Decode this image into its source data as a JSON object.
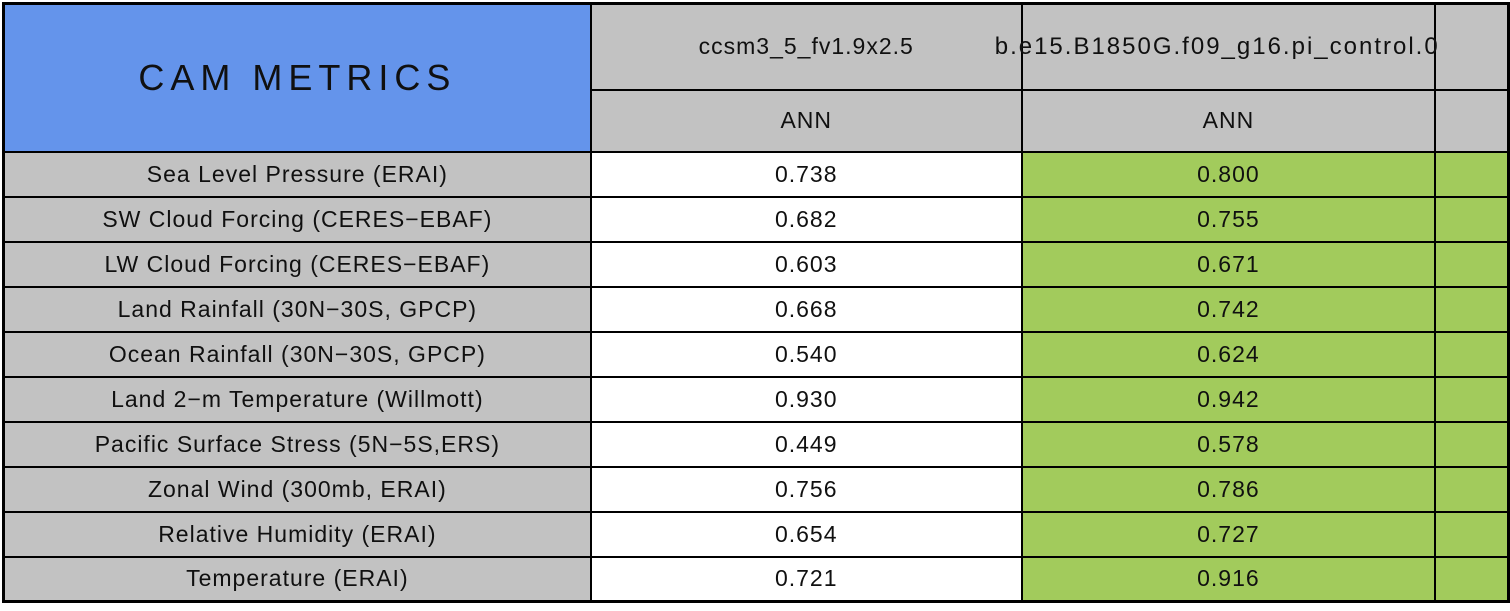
{
  "table": {
    "title": "CAM METRICS",
    "columns": [
      {
        "model": "ccsm3_5_fv1.9x2.5",
        "season": "ANN"
      },
      {
        "model": "b.e15.B1850G.f09_g16.pi_control.0",
        "season": "ANN"
      }
    ],
    "rows": [
      {
        "metric": "Sea Level Pressure (ERAI)",
        "values": [
          "0.738",
          "0.800"
        ]
      },
      {
        "metric": "SW Cloud Forcing (CERES−EBAF)",
        "values": [
          "0.682",
          "0.755"
        ]
      },
      {
        "metric": "LW Cloud Forcing (CERES−EBAF)",
        "values": [
          "0.603",
          "0.671"
        ]
      },
      {
        "metric": "Land Rainfall (30N−30S, GPCP)",
        "values": [
          "0.668",
          "0.742"
        ]
      },
      {
        "metric": "Ocean Rainfall (30N−30S, GPCP)",
        "values": [
          "0.540",
          "0.624"
        ]
      },
      {
        "metric": "Land 2−m Temperature (Willmott)",
        "values": [
          "0.930",
          "0.942"
        ]
      },
      {
        "metric": "Pacific Surface Stress (5N−5S,ERS)",
        "values": [
          "0.449",
          "0.578"
        ]
      },
      {
        "metric": "Zonal Wind (300mb, ERAI)",
        "values": [
          "0.756",
          "0.786"
        ]
      },
      {
        "metric": "Relative Humidity (ERAI)",
        "values": [
          "0.654",
          "0.727"
        ]
      },
      {
        "metric": "Temperature (ERAI)",
        "values": [
          "0.721",
          "0.916"
        ]
      }
    ],
    "colors": {
      "title_bg": "#6494EB",
      "header_bg": "#C2C2C2",
      "label_bg": "#C2C2C2",
      "value_col1_bg": "#FFFFFF",
      "value_col2_bg": "#A2CB5C",
      "border": "#000000"
    }
  },
  "chart_data": {
    "type": "table",
    "title": "CAM METRICS",
    "column_headers": [
      "ccsm3_5_fv1.9x2.5",
      "b.e15.B1850G.f09_g16.pi_control.0"
    ],
    "subheaders": [
      "ANN",
      "ANN"
    ],
    "row_labels": [
      "Sea Level Pressure (ERAI)",
      "SW Cloud Forcing (CERES−EBAF)",
      "LW Cloud Forcing (CERES−EBAF)",
      "Land Rainfall (30N−30S, GPCP)",
      "Ocean Rainfall (30N−30S, GPCP)",
      "Land 2−m Temperature (Willmott)",
      "Pacific Surface Stress (5N−5S,ERS)",
      "Zonal Wind (300mb, ERAI)",
      "Relative Humidity (ERAI)",
      "Temperature (ERAI)"
    ],
    "values": [
      [
        0.738,
        0.8
      ],
      [
        0.682,
        0.755
      ],
      [
        0.603,
        0.671
      ],
      [
        0.668,
        0.742
      ],
      [
        0.54,
        0.624
      ],
      [
        0.93,
        0.942
      ],
      [
        0.449,
        0.578
      ],
      [
        0.756,
        0.786
      ],
      [
        0.654,
        0.727
      ],
      [
        0.721,
        0.916
      ]
    ],
    "layout_hints": {
      "first_value_column_background": "white",
      "second_value_column_background": "green highlight",
      "row_label_background": "gray",
      "title_background": "cornflower blue",
      "right_edge_clipped": true
    }
  }
}
